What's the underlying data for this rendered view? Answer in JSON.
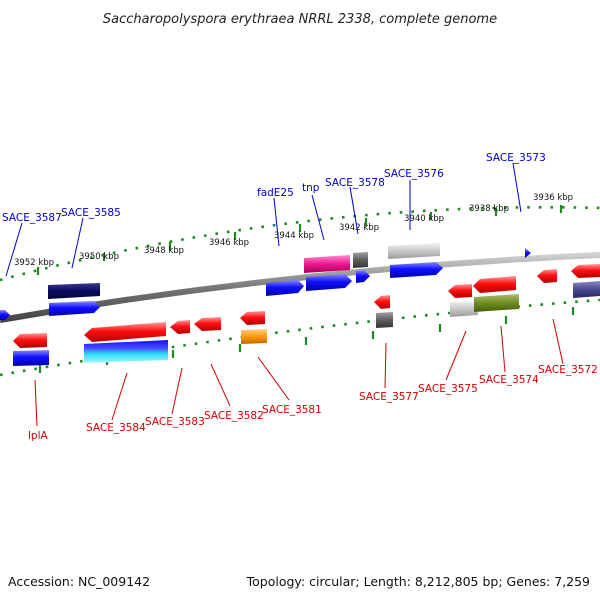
{
  "title": "Saccharopolyspora erythraea NRRL 2338, complete genome",
  "footer": {
    "accession": "Accession: NC_009142",
    "summary": "Topology: circular; Length: 8,212,805 bp; Genes: 7,259"
  },
  "scale_labels": [
    "3952 kbp",
    "3950 kbp",
    "3948 kbp",
    "3946 kbp",
    "3944 kbp",
    "3942 kbp",
    "3940 kbp",
    "3938 kbp",
    "3936 kbp"
  ],
  "top_labels": [
    "SACE_3587",
    "SACE_3585",
    "fadE25",
    "tnp",
    "SACE_3578",
    "SACE_3576",
    "SACE_3573"
  ],
  "bottom_labels": [
    "lplA",
    "SACE_3584",
    "SACE_3583",
    "SACE_3582",
    "SACE_3581",
    "SACE_3577",
    "SACE_3575",
    "SACE_3574",
    "SACE_3572"
  ],
  "colors": {
    "backbone": "#7a7a7a",
    "ruler": "#1f8a1f",
    "forward": "#0000ee",
    "reverse": "#ee0000",
    "forward_label": "#0000c8",
    "reverse_label": "#d00000"
  }
}
